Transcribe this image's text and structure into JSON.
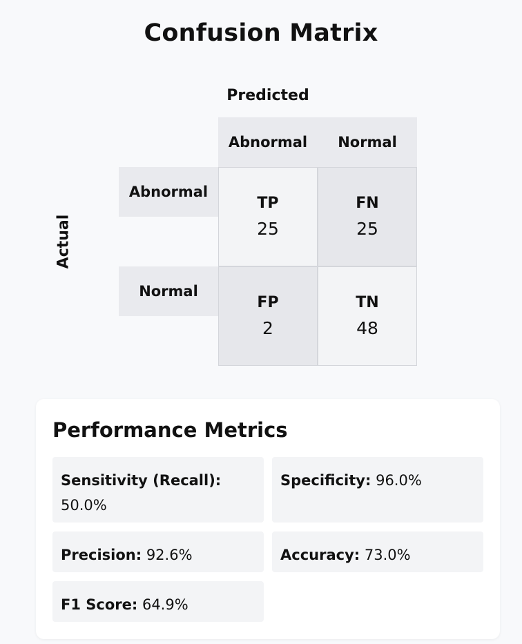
{
  "chart_data": {
    "type": "table",
    "title": "Confusion Matrix",
    "xlabel": "Predicted",
    "ylabel": "Actual",
    "columns": [
      "Abnormal",
      "Normal"
    ],
    "rows": [
      "Abnormal",
      "Normal"
    ],
    "cells": [
      [
        {
          "code": "TP",
          "count": "25"
        },
        {
          "code": "FN",
          "count": "25"
        }
      ],
      [
        {
          "code": "FP",
          "count": "2"
        },
        {
          "code": "TN",
          "count": "48"
        }
      ]
    ]
  },
  "metrics": {
    "title": "Performance Metrics",
    "items": [
      {
        "label": "Sensitivity (Recall):",
        "value": "50.0%"
      },
      {
        "label": "Specificity:",
        "value": "96.0%"
      },
      {
        "label": "Precision:",
        "value": "92.6%"
      },
      {
        "label": "Accuracy:",
        "value": "73.0%"
      },
      {
        "label": "F1 Score:",
        "value": "64.9%"
      }
    ]
  },
  "colors": {
    "header_bg": "#e9eaee",
    "cell_light": "#f3f4f6",
    "cell_dark": "#e6e7eb",
    "card_bg": "#ffffff",
    "page_bg": "#f8f9fb"
  }
}
